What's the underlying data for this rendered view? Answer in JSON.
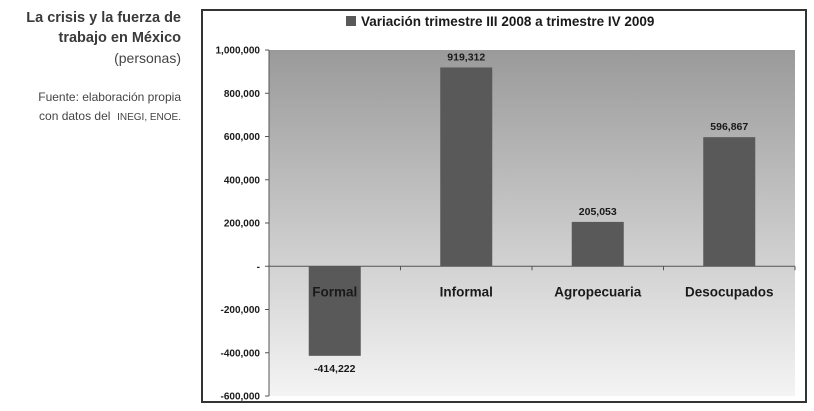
{
  "caption": {
    "title_line1": "La crisis y la fuerza de",
    "title_line2": "trabajo en México",
    "unit": "(personas)",
    "source_line1": "Fuente: elaboración propia",
    "source_prefix": "con datos del",
    "source_orgs": "INEGI, ENOE."
  },
  "chart_data": {
    "type": "bar",
    "title": "",
    "legend": [
      "Variación trimestre III 2008 a trimestre IV 2009"
    ],
    "legend_position": "top",
    "categories": [
      "Formal",
      "Informal",
      "Agropecuaria",
      "Desocupados"
    ],
    "series": [
      {
        "name": "Variación trimestre III 2008 a trimestre IV 2009",
        "values": [
          -414222,
          919312,
          205053,
          596867
        ]
      }
    ],
    "data_labels": [
      "-414,222",
      "919,312",
      "205,053",
      "596,867"
    ],
    "yticks": [
      1000000,
      800000,
      600000,
      400000,
      200000,
      0,
      -200000,
      -400000,
      -600000
    ],
    "ytick_labels": [
      "1,000,000",
      "800,000",
      "600,000",
      "400,000",
      "200,000",
      "-",
      "-200,000",
      "-400,000",
      "-600,000"
    ],
    "ylim": [
      -600000,
      1000000
    ],
    "grid": false,
    "colors": {
      "bar": "#595959",
      "plot_top": "#9a9a9a",
      "plot_bottom": "#f4f4f4",
      "text": "#1a1a1a"
    }
  }
}
